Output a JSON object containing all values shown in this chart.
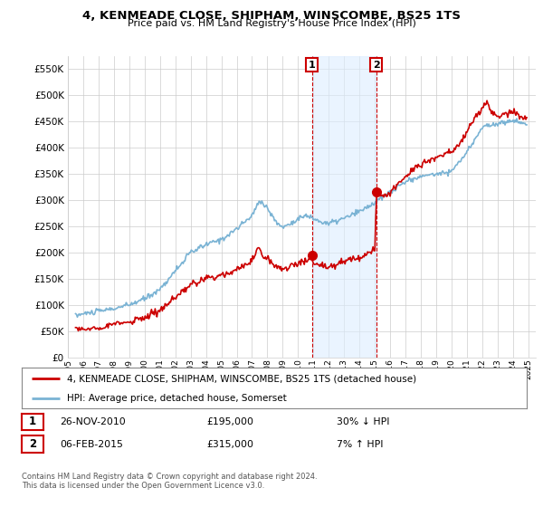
{
  "title": "4, KENMEADE CLOSE, SHIPHAM, WINSCOMBE, BS25 1TS",
  "subtitle": "Price paid vs. HM Land Registry's House Price Index (HPI)",
  "ylim": [
    0,
    575000
  ],
  "yticks": [
    0,
    50000,
    100000,
    150000,
    200000,
    250000,
    300000,
    350000,
    400000,
    450000,
    500000,
    550000
  ],
  "ytick_labels": [
    "£0",
    "£50K",
    "£100K",
    "£150K",
    "£200K",
    "£250K",
    "£300K",
    "£350K",
    "£400K",
    "£450K",
    "£500K",
    "£550K"
  ],
  "xlim_start": 1995.0,
  "xlim_end": 2025.5,
  "xtick_years": [
    1995,
    1996,
    1997,
    1998,
    1999,
    2000,
    2001,
    2002,
    2003,
    2004,
    2005,
    2006,
    2007,
    2008,
    2009,
    2010,
    2011,
    2012,
    2013,
    2014,
    2015,
    2016,
    2017,
    2018,
    2019,
    2020,
    2021,
    2022,
    2023,
    2024,
    2025
  ],
  "hpi_color": "#7ab3d4",
  "house_color": "#cc0000",
  "sale1_x": 2010.9,
  "sale1_y": 195000,
  "sale2_x": 2015.1,
  "sale2_y": 315000,
  "legend_house": "4, KENMEADE CLOSE, SHIPHAM, WINSCOMBE, BS25 1TS (detached house)",
  "legend_hpi": "HPI: Average price, detached house, Somerset",
  "annotation1_label": "1",
  "annotation1_date": "26-NOV-2010",
  "annotation1_price": "£195,000",
  "annotation1_hpi": "30% ↓ HPI",
  "annotation2_label": "2",
  "annotation2_date": "06-FEB-2015",
  "annotation2_price": "£315,000",
  "annotation2_hpi": "7% ↑ HPI",
  "footer": "Contains HM Land Registry data © Crown copyright and database right 2024.\nThis data is licensed under the Open Government Licence v3.0.",
  "background_color": "#ffffff",
  "grid_color": "#cccccc",
  "shade_color": "#ddeeff"
}
